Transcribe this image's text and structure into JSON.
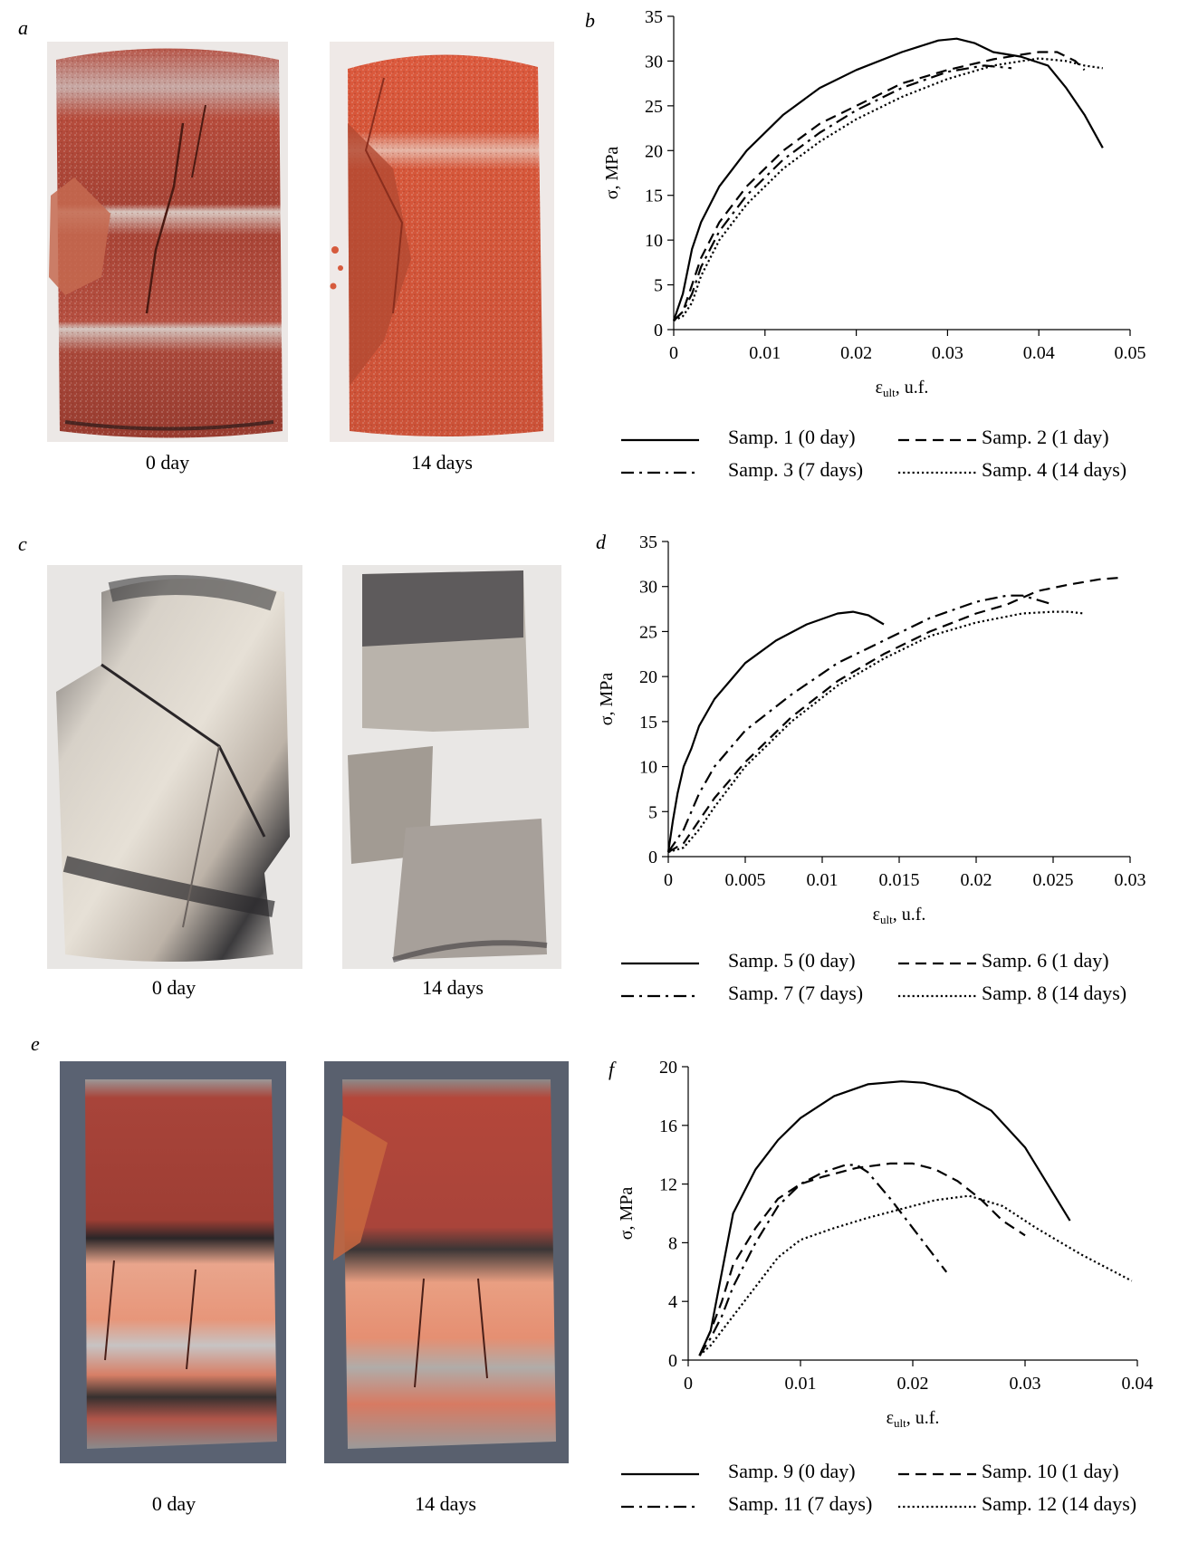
{
  "panels": {
    "a": {
      "letter": "a",
      "captions": [
        "0 day",
        "14 days"
      ]
    },
    "c": {
      "letter": "c",
      "captions": [
        "0 day",
        "14 days"
      ]
    },
    "e": {
      "letter": "e",
      "captions": [
        "0 day",
        "14 days"
      ]
    }
  },
  "chart_data": [
    {
      "letter": "b",
      "type": "line",
      "xlabel_main": "ε",
      "xlabel_sub": "ult",
      "xlabel_rest": ", u.f.",
      "ylabel": "σ, MPa",
      "xlim": [
        0,
        0.05
      ],
      "ylim": [
        0,
        35
      ],
      "xticks": [
        0,
        0.01,
        0.02,
        0.03,
        0.04,
        0.05
      ],
      "xtick_labels": [
        "0",
        "0.01",
        "0.02",
        "0.03",
        "0.04",
        "0.05"
      ],
      "yticks": [
        0,
        5,
        10,
        15,
        20,
        25,
        30,
        35
      ],
      "ytick_labels": [
        "0",
        "5",
        "10",
        "15",
        "20",
        "25",
        "30",
        "35"
      ],
      "series": [
        {
          "name": "Samp. 1 (0 day)",
          "style": "solid",
          "x": [
            0,
            0.001,
            0.002,
            0.003,
            0.005,
            0.008,
            0.012,
            0.016,
            0.02,
            0.025,
            0.029,
            0.031,
            0.033,
            0.035,
            0.038,
            0.041,
            0.043,
            0.045,
            0.047
          ],
          "y": [
            1,
            4,
            9,
            12,
            16,
            20,
            24,
            27,
            29,
            31,
            32.3,
            32.5,
            32,
            31,
            30.5,
            29.5,
            27,
            24,
            20.3
          ]
        },
        {
          "name": "Samp. 2 (1 day)",
          "style": "dashed",
          "x": [
            0,
            0.001,
            0.002,
            0.003,
            0.005,
            0.008,
            0.012,
            0.016,
            0.02,
            0.025,
            0.03,
            0.035,
            0.038,
            0.04,
            0.042,
            0.044,
            0.045
          ],
          "y": [
            1,
            2,
            5,
            8,
            12,
            16,
            20,
            23,
            25,
            27.5,
            29,
            30.2,
            30.7,
            31,
            31,
            30,
            29
          ]
        },
        {
          "name": "Samp. 3 (7 days)",
          "style": "dashdot",
          "x": [
            0,
            0.001,
            0.002,
            0.003,
            0.005,
            0.008,
            0.012,
            0.016,
            0.02,
            0.025,
            0.03,
            0.034,
            0.036,
            0.037
          ],
          "y": [
            1,
            2,
            4,
            7,
            11,
            15,
            19,
            22,
            24.5,
            27,
            28.8,
            29.5,
            29.3,
            29.2
          ]
        },
        {
          "name": "Samp. 4 (14 days)",
          "style": "dotted",
          "x": [
            0,
            0.001,
            0.002,
            0.003,
            0.005,
            0.008,
            0.012,
            0.016,
            0.02,
            0.025,
            0.03,
            0.035,
            0.04,
            0.043,
            0.045,
            0.047
          ],
          "y": [
            1,
            1.5,
            3,
            6,
            10,
            14,
            18,
            21,
            23.5,
            26,
            28,
            29.5,
            30.3,
            30,
            29.5,
            29.2
          ]
        }
      ]
    },
    {
      "letter": "d",
      "type": "line",
      "xlabel_main": "ε",
      "xlabel_sub": "ult",
      "xlabel_rest": ", u.f.",
      "ylabel": "σ, MPa",
      "xlim": [
        0,
        0.03
      ],
      "ylim": [
        0,
        35
      ],
      "xticks": [
        0,
        0.005,
        0.01,
        0.015,
        0.02,
        0.025,
        0.03
      ],
      "xtick_labels": [
        "0",
        "0.005",
        "0.01",
        "0.015",
        "0.02",
        "0.025",
        "0.03"
      ],
      "yticks": [
        0,
        5,
        10,
        15,
        20,
        25,
        30,
        35
      ],
      "ytick_labels": [
        "0",
        "5",
        "10",
        "15",
        "20",
        "25",
        "30",
        "35"
      ],
      "series": [
        {
          "name": "Samp. 5 (0 day)",
          "style": "solid",
          "x": [
            0,
            0.0003,
            0.0006,
            0.001,
            0.0015,
            0.002,
            0.003,
            0.004,
            0.005,
            0.007,
            0.009,
            0.011,
            0.012,
            0.013,
            0.014
          ],
          "y": [
            0.5,
            4,
            7,
            10,
            12,
            14.5,
            17.5,
            19.5,
            21.5,
            24,
            25.8,
            27,
            27.2,
            26.8,
            25.8
          ]
        },
        {
          "name": "Samp. 6 (1 day)",
          "style": "dashed",
          "x": [
            0,
            0.001,
            0.002,
            0.003,
            0.005,
            0.008,
            0.011,
            0.014,
            0.017,
            0.02,
            0.022,
            0.024,
            0.026,
            0.028,
            0.0295
          ],
          "y": [
            0.5,
            1.5,
            4,
            6.5,
            10.5,
            15.5,
            19.5,
            22.5,
            25,
            27,
            28,
            29.5,
            30.2,
            30.8,
            31
          ]
        },
        {
          "name": "Samp. 7 (7 days)",
          "style": "dashdot",
          "x": [
            0,
            0.001,
            0.002,
            0.003,
            0.005,
            0.008,
            0.011,
            0.014,
            0.017,
            0.02,
            0.022,
            0.023,
            0.024,
            0.025
          ],
          "y": [
            0.5,
            3,
            7,
            10,
            14,
            18,
            21.5,
            24,
            26.5,
            28.3,
            29,
            29,
            28.5,
            28
          ]
        },
        {
          "name": "Samp. 8 (14 days)",
          "style": "dotted",
          "x": [
            0,
            0.001,
            0.002,
            0.003,
            0.005,
            0.008,
            0.011,
            0.014,
            0.017,
            0.02,
            0.023,
            0.025,
            0.026,
            0.027
          ],
          "y": [
            0.5,
            1,
            3,
            5.5,
            10,
            15,
            19,
            22,
            24.5,
            26,
            27,
            27.2,
            27.2,
            27
          ]
        }
      ]
    },
    {
      "letter": "f",
      "type": "line",
      "xlabel_main": "ε",
      "xlabel_sub": "ult",
      "xlabel_rest": ", u.f.",
      "ylabel": "σ, MPa",
      "xlim": [
        0,
        0.04
      ],
      "ylim": [
        0,
        20
      ],
      "xticks": [
        0,
        0.01,
        0.02,
        0.03,
        0.04
      ],
      "xtick_labels": [
        "0",
        "0.01",
        "0.02",
        "0.03",
        "0.04"
      ],
      "yticks": [
        0,
        4,
        8,
        12,
        16,
        20
      ],
      "ytick_labels": [
        "0",
        "4",
        "8",
        "12",
        "16",
        "20"
      ],
      "series": [
        {
          "name": "Samp. 9 (0 day)",
          "style": "solid",
          "x": [
            0.001,
            0.002,
            0.003,
            0.004,
            0.006,
            0.008,
            0.01,
            0.013,
            0.016,
            0.019,
            0.021,
            0.024,
            0.027,
            0.03,
            0.032,
            0.034
          ],
          "y": [
            0.3,
            2,
            6,
            10,
            13,
            15,
            16.5,
            18,
            18.8,
            19,
            18.9,
            18.3,
            17,
            14.5,
            12,
            9.5
          ]
        },
        {
          "name": "Samp. 10 (1 day)",
          "style": "dashed",
          "x": [
            0.001,
            0.002,
            0.003,
            0.004,
            0.006,
            0.008,
            0.01,
            0.012,
            0.015,
            0.018,
            0.02,
            0.022,
            0.024,
            0.026,
            0.028,
            0.03
          ],
          "y": [
            0.3,
            2,
            4,
            6.5,
            9,
            11,
            12,
            12.5,
            13.1,
            13.4,
            13.4,
            13,
            12.2,
            11,
            9.5,
            8.5
          ]
        },
        {
          "name": "Samp. 11 (7 days)",
          "style": "dashdot",
          "x": [
            0.001,
            0.002,
            0.003,
            0.004,
            0.006,
            0.008,
            0.01,
            0.012,
            0.014,
            0.015,
            0.016,
            0.018,
            0.02,
            0.022,
            0.023
          ],
          "y": [
            0.3,
            1.5,
            3,
            5,
            8,
            10.5,
            12,
            12.8,
            13.3,
            13.3,
            12.8,
            11,
            9,
            7,
            6
          ]
        },
        {
          "name": "Samp. 12 (14 days)",
          "style": "dotted",
          "x": [
            0.001,
            0.002,
            0.003,
            0.004,
            0.006,
            0.008,
            0.01,
            0.013,
            0.016,
            0.019,
            0.022,
            0.025,
            0.028,
            0.031,
            0.035,
            0.0395
          ],
          "y": [
            0.3,
            1,
            2,
            3,
            5,
            7,
            8.2,
            9,
            9.7,
            10.3,
            10.9,
            11.2,
            10.5,
            9,
            7.2,
            5.4
          ]
        }
      ]
    }
  ],
  "colors": {
    "ink": "#000000",
    "bg": "#ffffff"
  }
}
